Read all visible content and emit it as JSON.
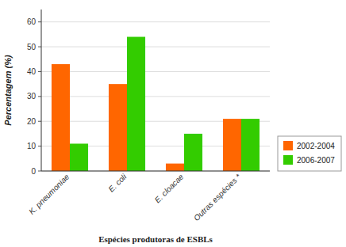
{
  "chart_data": {
    "type": "bar",
    "categories": [
      "K. pneumoniae",
      "E. coli",
      "E. cloacae",
      "Outras espécies *"
    ],
    "series": [
      {
        "name": "2002-2004",
        "color": "#FF6600",
        "values": [
          43,
          35,
          3,
          21
        ]
      },
      {
        "name": "2006-2007",
        "color": "#33CC00",
        "values": [
          11,
          54,
          15,
          21
        ]
      }
    ],
    "xlabel": "Espécies produtoras de ESBLs",
    "ylabel": "Percentagem (%)",
    "ylim": [
      0,
      65
    ],
    "yticks": [
      0,
      10,
      20,
      30,
      40,
      50,
      60
    ],
    "grid": true,
    "legend": "lower right"
  }
}
